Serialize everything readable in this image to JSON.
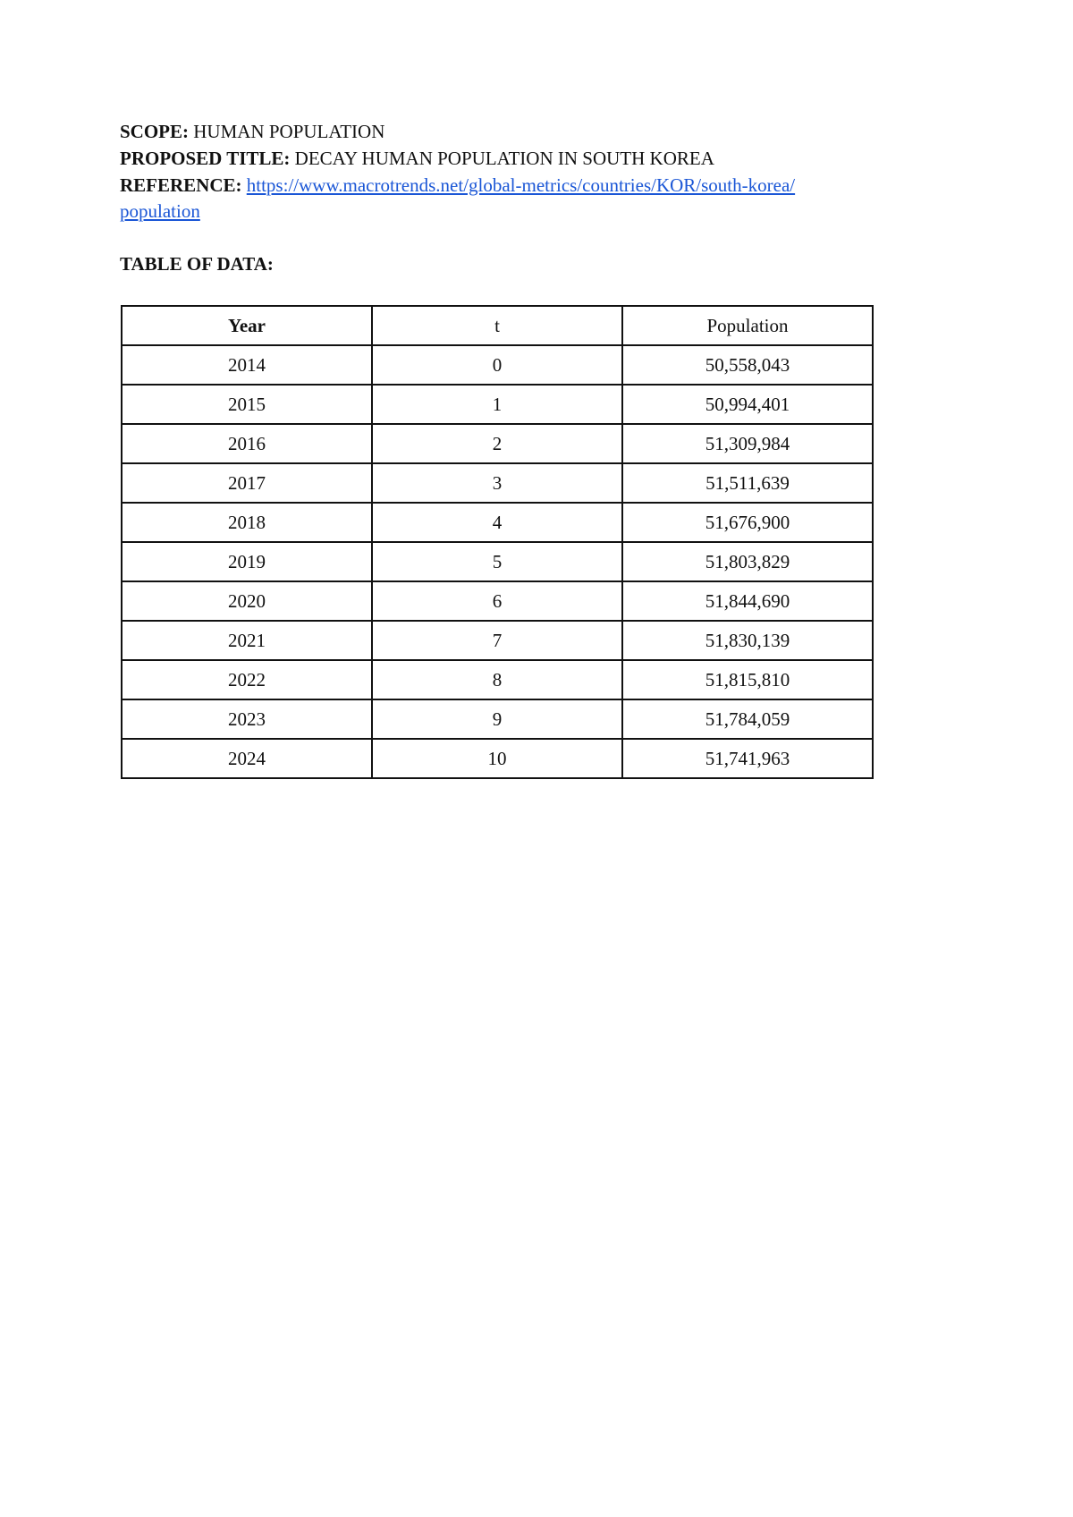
{
  "scope": {
    "label": "SCOPE:",
    "value": "HUMAN POPULATION"
  },
  "proposed_title": {
    "label": "PROPOSED TITLE:",
    "value": "DECAY HUMAN POPULATION IN SOUTH KOREA"
  },
  "reference": {
    "label": "REFERENCE:",
    "link_line1": "https://www.macrotrends.net/global-metrics/countries/KOR/south-korea/",
    "link_line2": "population"
  },
  "table_heading": "TABLE OF DATA:",
  "colors": {
    "link": "#1a56d6"
  },
  "table": {
    "headers": [
      "Year",
      "t",
      "Population"
    ],
    "rows": [
      [
        "2014",
        "0",
        "50,558,043"
      ],
      [
        "2015",
        "1",
        "50,994,401"
      ],
      [
        "2016",
        "2",
        "51,309,984"
      ],
      [
        "2017",
        "3",
        "51,511,639"
      ],
      [
        "2018",
        "4",
        "51,676,900"
      ],
      [
        "2019",
        "5",
        "51,803,829"
      ],
      [
        "2020",
        "6",
        "51,844,690"
      ],
      [
        "2021",
        "7",
        "51,830,139"
      ],
      [
        "2022",
        "8",
        "51,815,810"
      ],
      [
        "2023",
        "9",
        "51,784,059"
      ],
      [
        "2024",
        "10",
        "51,741,963"
      ]
    ]
  }
}
